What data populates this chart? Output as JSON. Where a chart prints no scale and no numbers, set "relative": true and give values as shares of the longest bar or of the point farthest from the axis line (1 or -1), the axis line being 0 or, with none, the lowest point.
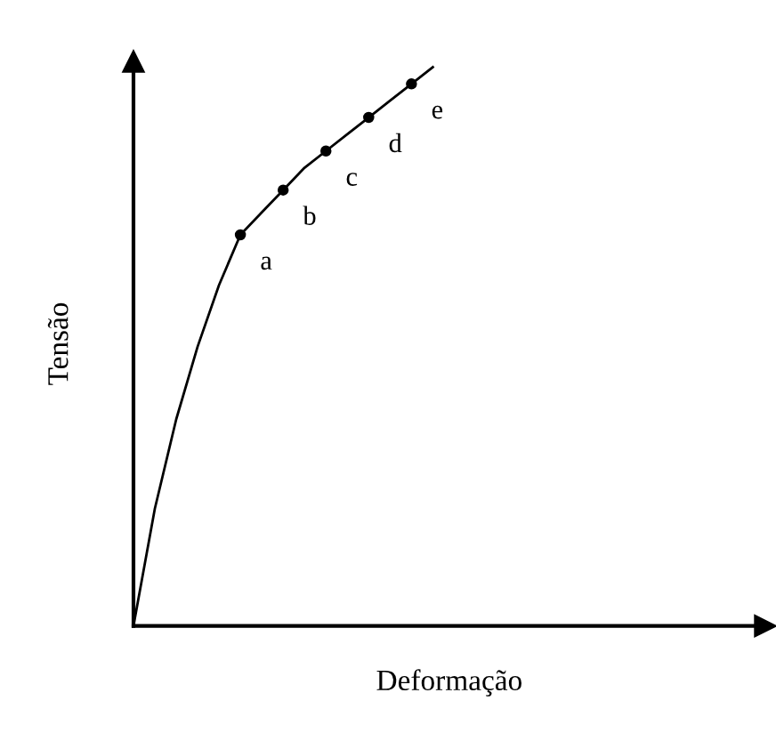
{
  "chart_data": {
    "type": "line",
    "relative": true,
    "xlabel": "Deformação",
    "ylabel": "Tensão",
    "legend": false,
    "line_style": "solid",
    "categories": [
      null,
      null,
      null,
      null,
      null,
      null,
      null,
      null,
      null,
      null,
      null,
      null,
      null,
      null,
      null
    ],
    "series": [
      {
        "color": "#000000",
        "values": [
          0,
          0.21,
          0.37,
          0.5,
          0.61,
          0.7,
          0.74,
          0.78,
          0.82,
          0.85,
          0.88,
          0.91,
          0.94,
          0.97,
          1
        ]
      }
    ],
    "annotations": [
      "a",
      "b",
      "c",
      "d",
      "e"
    ]
  }
}
